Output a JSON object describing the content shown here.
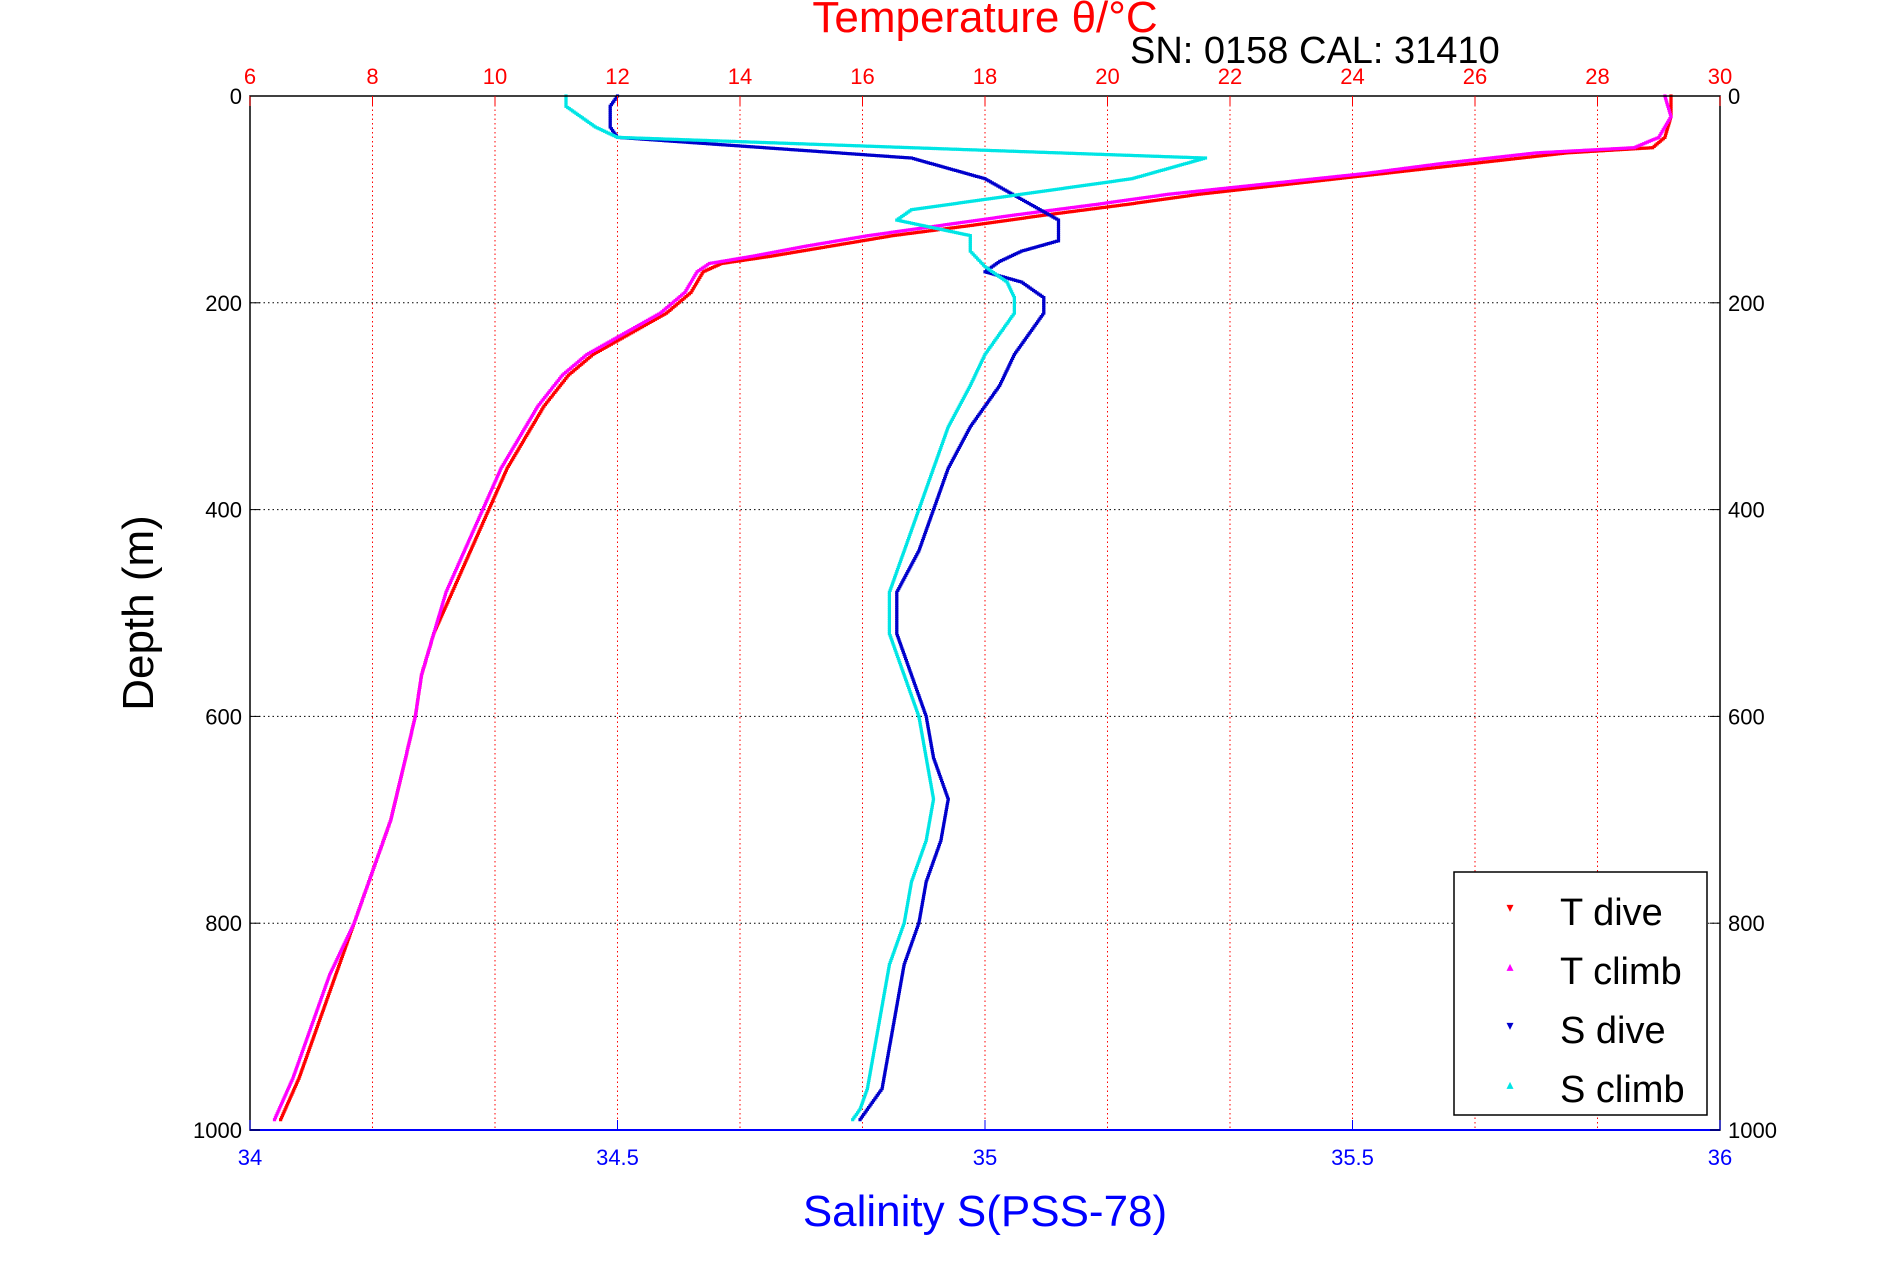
{
  "chart_data": {
    "type": "scatter",
    "title": "Temperature θ/°C",
    "annotation": "SN: 0158  CAL: 31410",
    "xlabel_bottom": "Salinity S(PSS-78)",
    "ylabel": "Depth (m)",
    "temperature_axis": {
      "min": 6,
      "max": 30,
      "ticks": [
        "6",
        "8",
        "10",
        "12",
        "14",
        "16",
        "18",
        "20",
        "22",
        "24",
        "26",
        "28",
        "30"
      ]
    },
    "salinity_axis": {
      "min": 34,
      "max": 36,
      "ticks": [
        "34",
        "34.5",
        "35",
        "35.5",
        "36"
      ]
    },
    "depth_axis": {
      "min": 0,
      "max": 1000,
      "reversed": true,
      "ticks": [
        "0",
        "200",
        "400",
        "600",
        "800",
        "1000"
      ]
    },
    "grid": true,
    "legend_position": "bottom-right",
    "legend": [
      "T dive",
      "T climb",
      "S dive",
      "S climb"
    ],
    "colors": {
      "t_dive": "#ff0000",
      "t_climb": "#ff00ff",
      "s_dive": "#0000cc",
      "s_climb": "#00e5e5"
    },
    "series": [
      {
        "name": "T dive",
        "axis": "temperature",
        "profile": [
          [
            0,
            29.2
          ],
          [
            20,
            29.2
          ],
          [
            40,
            29.1
          ],
          [
            50,
            28.9
          ],
          [
            55,
            27.5
          ],
          [
            65,
            26.0
          ],
          [
            75,
            24.5
          ],
          [
            85,
            23.0
          ],
          [
            95,
            21.5
          ],
          [
            105,
            20.3
          ],
          [
            115,
            19.0
          ],
          [
            125,
            17.8
          ],
          [
            135,
            16.5
          ],
          [
            145,
            15.5
          ],
          [
            155,
            14.5
          ],
          [
            162,
            13.7
          ],
          [
            170,
            13.4
          ],
          [
            190,
            13.2
          ],
          [
            210,
            12.8
          ],
          [
            230,
            12.2
          ],
          [
            250,
            11.6
          ],
          [
            270,
            11.2
          ],
          [
            300,
            10.8
          ],
          [
            330,
            10.5
          ],
          [
            360,
            10.2
          ],
          [
            400,
            9.9
          ],
          [
            440,
            9.6
          ],
          [
            480,
            9.3
          ],
          [
            520,
            9.0
          ],
          [
            560,
            8.8
          ],
          [
            600,
            8.7
          ],
          [
            650,
            8.5
          ],
          [
            700,
            8.3
          ],
          [
            750,
            8.0
          ],
          [
            800,
            7.7
          ],
          [
            850,
            7.4
          ],
          [
            900,
            7.1
          ],
          [
            950,
            6.8
          ],
          [
            990,
            6.5
          ]
        ]
      },
      {
        "name": "T climb",
        "axis": "temperature",
        "profile": [
          [
            0,
            29.1
          ],
          [
            20,
            29.2
          ],
          [
            40,
            29.0
          ],
          [
            50,
            28.6
          ],
          [
            55,
            27.0
          ],
          [
            65,
            25.5
          ],
          [
            75,
            24.2
          ],
          [
            85,
            22.6
          ],
          [
            95,
            21.0
          ],
          [
            105,
            19.8
          ],
          [
            115,
            18.5
          ],
          [
            125,
            17.3
          ],
          [
            135,
            16.1
          ],
          [
            145,
            15.1
          ],
          [
            155,
            14.2
          ],
          [
            162,
            13.5
          ],
          [
            170,
            13.3
          ],
          [
            190,
            13.1
          ],
          [
            210,
            12.7
          ],
          [
            230,
            12.1
          ],
          [
            250,
            11.5
          ],
          [
            270,
            11.1
          ],
          [
            300,
            10.7
          ],
          [
            330,
            10.4
          ],
          [
            360,
            10.1
          ],
          [
            400,
            9.8
          ],
          [
            440,
            9.5
          ],
          [
            480,
            9.2
          ],
          [
            520,
            9.0
          ],
          [
            560,
            8.8
          ],
          [
            600,
            8.7
          ],
          [
            650,
            8.5
          ],
          [
            700,
            8.3
          ],
          [
            750,
            8.0
          ],
          [
            800,
            7.7
          ],
          [
            850,
            7.3
          ],
          [
            900,
            7.0
          ],
          [
            950,
            6.7
          ],
          [
            990,
            6.4
          ]
        ]
      },
      {
        "name": "S dive",
        "axis": "salinity",
        "profile": [
          [
            0,
            34.5
          ],
          [
            10,
            34.49
          ],
          [
            20,
            34.49
          ],
          [
            30,
            34.49
          ],
          [
            40,
            34.5
          ],
          [
            60,
            34.9
          ],
          [
            80,
            35.0
          ],
          [
            100,
            35.05
          ],
          [
            120,
            35.1
          ],
          [
            140,
            35.1
          ],
          [
            150,
            35.05
          ],
          [
            160,
            35.02
          ],
          [
            170,
            35.0
          ],
          [
            180,
            35.05
          ],
          [
            195,
            35.08
          ],
          [
            210,
            35.08
          ],
          [
            230,
            35.06
          ],
          [
            250,
            35.04
          ],
          [
            280,
            35.02
          ],
          [
            320,
            34.98
          ],
          [
            360,
            34.95
          ],
          [
            400,
            34.93
          ],
          [
            440,
            34.91
          ],
          [
            480,
            34.88
          ],
          [
            520,
            34.88
          ],
          [
            560,
            34.9
          ],
          [
            600,
            34.92
          ],
          [
            640,
            34.93
          ],
          [
            680,
            34.95
          ],
          [
            720,
            34.94
          ],
          [
            760,
            34.92
          ],
          [
            800,
            34.91
          ],
          [
            840,
            34.89
          ],
          [
            880,
            34.88
          ],
          [
            920,
            34.87
          ],
          [
            960,
            34.86
          ],
          [
            980,
            34.84
          ],
          [
            990,
            34.83
          ]
        ]
      },
      {
        "name": "S climb",
        "axis": "salinity",
        "profile": [
          [
            0,
            34.43
          ],
          [
            10,
            34.43
          ],
          [
            20,
            34.45
          ],
          [
            30,
            34.47
          ],
          [
            40,
            34.5
          ],
          [
            60,
            35.3
          ],
          [
            80,
            35.2
          ],
          [
            100,
            35.0
          ],
          [
            110,
            34.9
          ],
          [
            120,
            34.88
          ],
          [
            135,
            34.98
          ],
          [
            150,
            34.98
          ],
          [
            165,
            35.0
          ],
          [
            180,
            35.03
          ],
          [
            195,
            35.04
          ],
          [
            210,
            35.04
          ],
          [
            230,
            35.02
          ],
          [
            250,
            35.0
          ],
          [
            280,
            34.98
          ],
          [
            320,
            34.95
          ],
          [
            360,
            34.93
          ],
          [
            400,
            34.91
          ],
          [
            440,
            34.89
          ],
          [
            480,
            34.87
          ],
          [
            520,
            34.87
          ],
          [
            560,
            34.89
          ],
          [
            600,
            34.91
          ],
          [
            640,
            34.92
          ],
          [
            680,
            34.93
          ],
          [
            720,
            34.92
          ],
          [
            760,
            34.9
          ],
          [
            800,
            34.89
          ],
          [
            840,
            34.87
          ],
          [
            880,
            34.86
          ],
          [
            920,
            34.85
          ],
          [
            960,
            34.84
          ],
          [
            980,
            34.83
          ],
          [
            990,
            34.82
          ]
        ]
      }
    ]
  }
}
